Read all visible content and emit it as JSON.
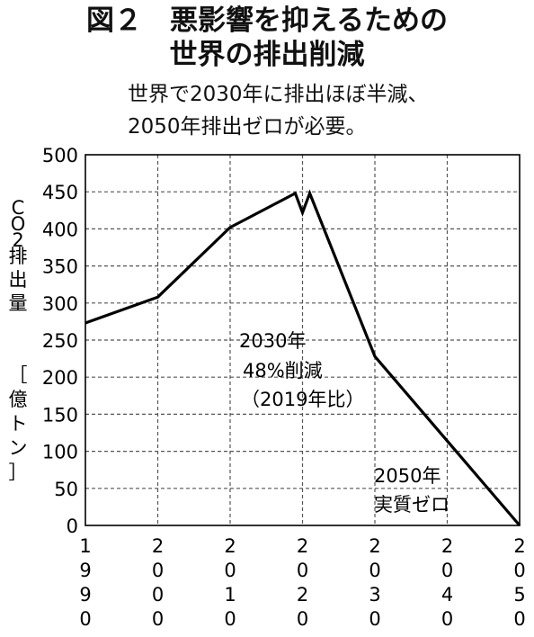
{
  "title_line1": "図２　悪影響を抑えるための",
  "title_line2": "世界の排出削減",
  "subtitle_line1": "世界で2030年に排出ほぼ半減、",
  "subtitle_line2": "2050年排出ゼロが必要。",
  "chart_data": {
    "type": "line",
    "ylabel_main": "CO2排出量",
    "ylabel_unit": "［億トン］",
    "ylim": [
      0,
      500
    ],
    "yticks": [
      0,
      50,
      100,
      150,
      200,
      250,
      300,
      350,
      400,
      450,
      500
    ],
    "xlim": [
      1990,
      2050
    ],
    "xticks": [
      1990,
      2000,
      2010,
      2020,
      2030,
      2040,
      2050
    ],
    "grid": true,
    "series": [
      {
        "x": [
          1990,
          2000,
          2010,
          2019,
          2020,
          2021,
          2030,
          2050
        ],
        "y": [
          273,
          308,
          402,
          448,
          422,
          448,
          228,
          0
        ]
      }
    ],
    "annotations": [
      {
        "lines": [
          "2030年",
          "48%削減",
          "（2019年比）"
        ]
      },
      {
        "lines": [
          "2050年",
          "実質ゼロ"
        ]
      }
    ]
  },
  "colors": {
    "line": "#000000",
    "grid": "#555555",
    "frame": "#000000"
  }
}
